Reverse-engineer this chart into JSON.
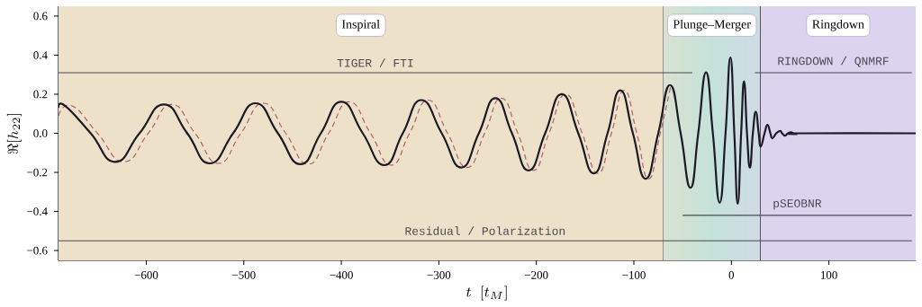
{
  "chart_data": {
    "type": "line",
    "xlabel": "t\\;\\;[t_M]",
    "ylabel": "\\Re[h_{22}]",
    "xlim": [
      -690,
      189
    ],
    "ylim": [
      -0.65,
      0.65
    ],
    "xticks": [
      {
        "value": -600,
        "label": "−600"
      },
      {
        "value": -500,
        "label": "−500"
      },
      {
        "value": -400,
        "label": "−400"
      },
      {
        "value": -300,
        "label": "−300"
      },
      {
        "value": -200,
        "label": "−200"
      },
      {
        "value": -100,
        "label": "−100"
      },
      {
        "value": 0,
        "label": "0"
      },
      {
        "value": 100,
        "label": "100"
      }
    ],
    "yticks": [
      {
        "value": -0.6,
        "label": "−0.6"
      },
      {
        "value": -0.4,
        "label": "−0.4"
      },
      {
        "value": -0.2,
        "label": "−0.2"
      },
      {
        "value": 0,
        "label": "0.0"
      },
      {
        "value": 0.2,
        "label": "0.2"
      },
      {
        "value": 0.4,
        "label": "0.4"
      },
      {
        "value": 0.6,
        "label": "0.6"
      }
    ],
    "bands": [
      {
        "axis": "x",
        "from": -690,
        "to": -70,
        "label": "Inspiral",
        "color": "#eee1c9"
      },
      {
        "axis": "x",
        "from": -70,
        "to": 30,
        "label": "Plunge–Merger",
        "color": "#c4e2da"
      },
      {
        "axis": "x",
        "from": 30,
        "to": 189,
        "label": "Ringdown",
        "color": "#dcd3ee"
      }
    ],
    "series": [
      {
        "color": "#b0616c",
        "line_style": "dashed",
        "x": [
          -690,
          -676,
          -650,
          -623,
          -598,
          -574,
          -550,
          -526,
          -503,
          -480,
          -457,
          -434,
          -413,
          -392,
          -370,
          -349,
          -330,
          -311,
          -291,
          -271,
          -253,
          -236,
          -219,
          -203,
          -187,
          -170,
          -153,
          -137,
          -123,
          -110,
          -97,
          -85,
          -73,
          -62
        ],
        "values": [
          0.09,
          0.14,
          0,
          -0.146,
          0,
          0.148,
          0,
          -0.154,
          0,
          0.154,
          0,
          -0.158,
          0,
          0.161,
          0,
          -0.163,
          0,
          0.17,
          0,
          -0.175,
          0,
          0.18,
          0,
          -0.19,
          0,
          0.2,
          0,
          -0.205,
          0,
          0.22,
          0,
          -0.233,
          0,
          0.247
        ]
      },
      {
        "color": "#1c1a26",
        "line_style": "solid",
        "x": [
          -690,
          -683,
          -657,
          -632,
          -607,
          -582,
          -558,
          -535,
          -511,
          -488,
          -465,
          -442,
          -421,
          -400,
          -378,
          -356,
          -337,
          -318,
          -297,
          -277,
          -259,
          -242,
          -225,
          -208,
          -191,
          -174,
          -157,
          -141,
          -127,
          -114,
          -101,
          -88,
          -75,
          -63,
          -52,
          -42,
          -34,
          -26,
          -19,
          -12,
          -6,
          -1,
          3,
          6.5,
          10,
          13,
          16,
          19,
          22,
          25,
          28,
          30,
          34,
          37,
          40,
          42,
          46,
          50,
          52,
          55,
          58,
          61,
          64,
          67,
          72,
          189
        ],
        "values": [
          0.13,
          0.14,
          0,
          -0.146,
          0,
          0.148,
          0,
          -0.154,
          0,
          0.154,
          0,
          -0.158,
          0,
          0.161,
          0,
          -0.163,
          0,
          0.17,
          0,
          -0.175,
          0,
          0.18,
          0,
          -0.19,
          0,
          0.2,
          0,
          -0.205,
          0,
          0.22,
          0,
          -0.233,
          0,
          0.247,
          0,
          -0.279,
          0,
          0.312,
          0,
          -0.355,
          0,
          0.388,
          0,
          -0.36,
          0,
          0.266,
          0,
          -0.175,
          0,
          0.11,
          0,
          -0.068,
          0,
          0.043,
          0,
          -0.026,
          0,
          0.012,
          0,
          -0.012,
          0,
          0.005,
          0,
          -0.004,
          0,
          0
        ]
      },
      {
        "name": "TIGER / FTI",
        "color": "#4a4a50",
        "line_style": "solid",
        "x": [
          -690,
          -40
        ],
        "values": [
          0.31,
          0.31
        ]
      },
      {
        "name": "RINGDOWN / QNMRF",
        "color": "#4a4a50",
        "line_style": "solid",
        "x": [
          24,
          185
        ],
        "values": [
          0.31,
          0.31
        ]
      },
      {
        "name": "pSEOBNR",
        "color": "#4a4a50",
        "line_style": "solid",
        "x": [
          -50,
          185
        ],
        "values": [
          -0.42,
          -0.42
        ]
      },
      {
        "name": "Residual / Polarization",
        "color": "#4a4a50",
        "line_style": "solid",
        "x": [
          -690,
          185
        ],
        "values": [
          -0.55,
          -0.55
        ]
      }
    ]
  }
}
